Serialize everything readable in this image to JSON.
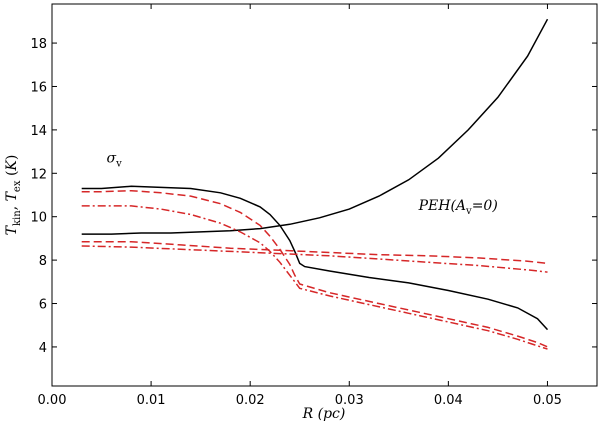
{
  "chart_data": {
    "type": "line",
    "title": "",
    "xlabel": "R (pc)",
    "ylabel": "T_kin, T_ex (K)",
    "xlim": [
      0.0,
      0.055
    ],
    "ylim": [
      2.2,
      19.8
    ],
    "xticks": [
      0.0,
      0.01,
      0.02,
      0.03,
      0.04,
      0.05
    ],
    "xtick_labels": [
      "0.00",
      "0.01",
      "0.02",
      "0.03",
      "0.04",
      "0.05"
    ],
    "yticks": [
      4,
      6,
      8,
      10,
      12,
      14,
      16,
      18
    ],
    "ytick_labels": [
      "4",
      "6",
      "8",
      "10",
      "12",
      "14",
      "16",
      "18"
    ],
    "grid": false,
    "legend": "none",
    "annotations": [
      {
        "text": "σ",
        "sub": "v",
        "x": 0.0055,
        "y": 12.5
      },
      {
        "text": "PEH(A",
        "sub": "v",
        "tail": "=0)",
        "x": 0.037,
        "y": 10.3
      }
    ],
    "series": [
      {
        "name": "T_kin",
        "color": "#000000",
        "dash": "solid",
        "x": [
          0.003,
          0.006,
          0.009,
          0.012,
          0.015,
          0.018,
          0.021,
          0.024,
          0.027,
          0.03,
          0.033,
          0.036,
          0.039,
          0.042,
          0.045,
          0.048,
          0.05
        ],
        "y": [
          9.2,
          9.2,
          9.25,
          9.25,
          9.3,
          9.35,
          9.45,
          9.65,
          9.95,
          10.35,
          10.95,
          11.7,
          12.7,
          14.0,
          15.5,
          17.4,
          19.1
        ]
      },
      {
        "name": "T_ex upper solid",
        "color": "#000000",
        "dash": "solid",
        "x": [
          0.003,
          0.005,
          0.008,
          0.011,
          0.014,
          0.017,
          0.019,
          0.021,
          0.022,
          0.023,
          0.024,
          0.0245,
          0.025,
          0.0255,
          0.028,
          0.032,
          0.036,
          0.04,
          0.044,
          0.047,
          0.049,
          0.05
        ],
        "y": [
          11.3,
          11.3,
          11.4,
          11.35,
          11.3,
          11.1,
          10.85,
          10.45,
          10.1,
          9.6,
          8.9,
          8.4,
          7.85,
          7.7,
          7.5,
          7.2,
          6.95,
          6.6,
          6.2,
          5.8,
          5.3,
          4.8
        ]
      },
      {
        "name": "T_ex upper dashed",
        "color": "#d62728",
        "dash": "dashed",
        "x": [
          0.003,
          0.005,
          0.008,
          0.011,
          0.014,
          0.017,
          0.019,
          0.021,
          0.022,
          0.023,
          0.024,
          0.0245,
          0.025,
          0.028,
          0.032,
          0.036,
          0.04,
          0.044,
          0.047,
          0.049,
          0.05
        ],
        "y": [
          11.15,
          11.15,
          11.2,
          11.1,
          10.95,
          10.6,
          10.2,
          9.6,
          9.1,
          8.5,
          7.8,
          7.3,
          6.9,
          6.5,
          6.1,
          5.7,
          5.3,
          4.9,
          4.5,
          4.2,
          4.0
        ]
      },
      {
        "name": "T_ex upper dash-dot",
        "color": "#d62728",
        "dash": "dashdot",
        "x": [
          0.003,
          0.005,
          0.008,
          0.011,
          0.014,
          0.017,
          0.019,
          0.021,
          0.022,
          0.023,
          0.024,
          0.0245,
          0.025,
          0.028,
          0.032,
          0.036,
          0.04,
          0.044,
          0.047,
          0.049,
          0.05
        ],
        "y": [
          10.5,
          10.5,
          10.5,
          10.35,
          10.1,
          9.7,
          9.3,
          8.8,
          8.4,
          7.9,
          7.3,
          7.0,
          6.7,
          6.35,
          5.95,
          5.55,
          5.15,
          4.75,
          4.35,
          4.05,
          3.9
        ]
      },
      {
        "name": "T_ex lower dashed",
        "color": "#d62728",
        "dash": "dashed",
        "x": [
          0.003,
          0.008,
          0.013,
          0.018,
          0.023,
          0.028,
          0.033,
          0.038,
          0.043,
          0.048,
          0.05
        ],
        "y": [
          8.85,
          8.85,
          8.7,
          8.55,
          8.45,
          8.35,
          8.25,
          8.2,
          8.1,
          7.95,
          7.85
        ]
      },
      {
        "name": "T_ex lower dash-dot",
        "color": "#d62728",
        "dash": "dashdot",
        "x": [
          0.003,
          0.008,
          0.013,
          0.018,
          0.023,
          0.028,
          0.033,
          0.038,
          0.043,
          0.048,
          0.05
        ],
        "y": [
          8.65,
          8.6,
          8.5,
          8.4,
          8.3,
          8.2,
          8.05,
          7.9,
          7.75,
          7.55,
          7.45
        ]
      }
    ]
  }
}
